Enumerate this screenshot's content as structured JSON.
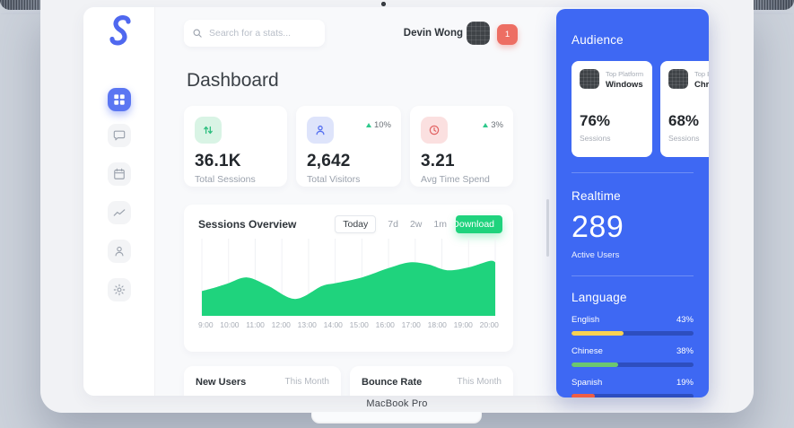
{
  "device": {
    "label": "MacBook Pro"
  },
  "sidebar": {
    "logo_letter": "S",
    "items": [
      {
        "id": "dashboard",
        "active": true
      },
      {
        "id": "messages",
        "active": false
      },
      {
        "id": "calendar",
        "active": false
      },
      {
        "id": "analytics",
        "active": false
      },
      {
        "id": "users",
        "active": false
      },
      {
        "id": "settings",
        "active": false
      }
    ]
  },
  "topbar": {
    "search_placeholder": "Search for a stats...",
    "user_name": "Devin Wong",
    "notification_count": "1"
  },
  "page_title": "Dashboard",
  "stats": [
    {
      "value": "36.1K",
      "label": "Total Sessions"
    },
    {
      "value": "2,642",
      "label": "Total Visitors",
      "delta": "10%"
    },
    {
      "value": "3.21",
      "label": "Avg Time Spend",
      "delta": "3%"
    }
  ],
  "sessions_overview": {
    "title": "Sessions Overview",
    "ranges": [
      "Today",
      "7d",
      "2w",
      "1m"
    ],
    "active_range": "Today",
    "download_label": "Download"
  },
  "chart_data": {
    "type": "area",
    "title": "Sessions Overview",
    "categories": [
      "9:00",
      "10:00",
      "11:00",
      "12:00",
      "13:00",
      "14:00",
      "15:00",
      "16:00",
      "17:00",
      "18:00",
      "19:00",
      "20:00"
    ],
    "values": [
      32,
      43,
      49,
      26,
      30,
      43,
      51,
      64,
      72,
      62,
      65,
      72
    ],
    "curve": [
      [
        9,
        32
      ],
      [
        9.5,
        37
      ],
      [
        10,
        43
      ],
      [
        10.7,
        51
      ],
      [
        11.5,
        39
      ],
      [
        12.5,
        21
      ],
      [
        13.5,
        39
      ],
      [
        14,
        43
      ],
      [
        15,
        51
      ],
      [
        16,
        64
      ],
      [
        16.8,
        72
      ],
      [
        17.5,
        69
      ],
      [
        18.2,
        61
      ],
      [
        19,
        65
      ],
      [
        19.8,
        74
      ],
      [
        20,
        72
      ]
    ],
    "xlabel": "",
    "ylabel": "",
    "ylim": [
      0,
      100
    ],
    "units": "percent of plot height (no y-axis shown; estimated)",
    "grid": "vertical",
    "legend": "none",
    "area_color": "#1fd37d"
  },
  "bottom_cards": [
    {
      "title": "New Users",
      "period": "This Month"
    },
    {
      "title": "Bounce Rate",
      "period": "This Month"
    }
  ],
  "audience_panel": {
    "title": "Audience",
    "cards": [
      {
        "tag": "Top Platform",
        "name": "Windows",
        "value": "76%",
        "label": "Sessions"
      },
      {
        "tag": "Top Browser",
        "name": "Chrome",
        "value": "68%",
        "label": "Sessions"
      }
    ],
    "realtime": {
      "title": "Realtime",
      "value": "289",
      "label": "Active Users"
    },
    "language": {
      "title": "Language",
      "rows": [
        {
          "name": "English",
          "pct": "43%",
          "color": "#f8d153"
        },
        {
          "name": "Chinese",
          "pct": "38%",
          "color": "#6cc76f"
        },
        {
          "name": "Spanish",
          "pct": "19%",
          "color": "#ef5e44"
        }
      ]
    }
  },
  "colors": {
    "panel_blue": "#3e68f3",
    "accent_green": "#1fd37d",
    "sidebar_active": "#5b76f2",
    "badge_red": "#ed6e63",
    "chip_green_bg": "#d9f4e5",
    "chip_lavender_bg": "#dee4fb",
    "chip_pink_bg": "#fbe0e0"
  }
}
